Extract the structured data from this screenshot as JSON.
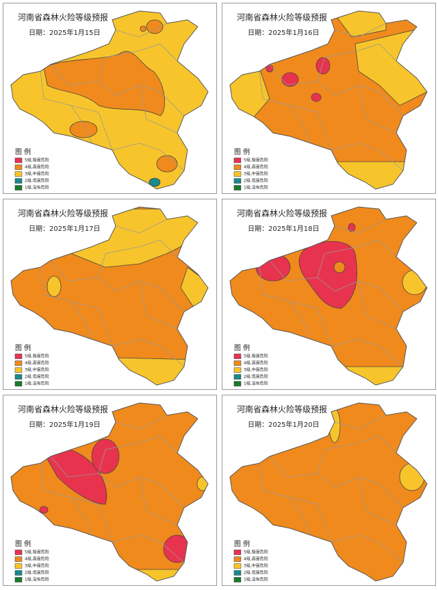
{
  "panels": [
    {
      "title": "河南省森林火险等级预报",
      "date": "日期：2025年1月15日"
    },
    {
      "title": "河南省森林火险等级预报",
      "date": "日期：2025年1月16日"
    },
    {
      "title": "河南省森林火险等级预报",
      "date": "日期：2025年1月17日"
    },
    {
      "title": "河南省森林火险等级预报",
      "date": "日期：2025年1月18日"
    },
    {
      "title": "河南省森林火险等级预报",
      "date": "日期：2025年1月19日"
    },
    {
      "title": "河南省森林火险等级预报",
      "date": "日期：2025年1月20日"
    }
  ],
  "legend": {
    "title": "图  例",
    "items": [
      "5级,极度危险",
      "4级,高度危险",
      "3级,中度危险",
      "2级,低度危险",
      "1级,没有危险"
    ]
  }
}
